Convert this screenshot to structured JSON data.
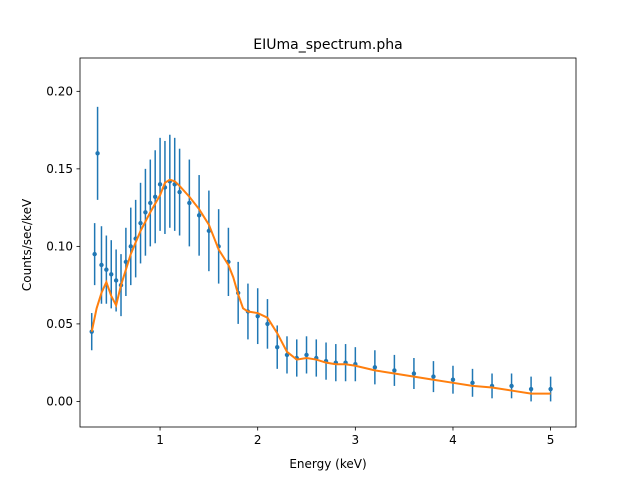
{
  "chart_data": {
    "type": "scatter",
    "title": "EIUma_spectrum.pha",
    "xlabel": "Energy (keV)",
    "ylabel": "Counts/sec/keV",
    "xlim": [
      0.18,
      5.26
    ],
    "ylim": [
      -0.0165,
      0.2215
    ],
    "xticks": [
      1,
      2,
      3,
      4,
      5
    ],
    "xtick_labels": [
      "1",
      "2",
      "3",
      "4",
      "5"
    ],
    "yticks": [
      0.0,
      0.05,
      0.1,
      0.15,
      0.2
    ],
    "ytick_labels": [
      "0.00",
      "0.05",
      "0.10",
      "0.15",
      "0.20"
    ],
    "grid": false,
    "legend": "none",
    "series": [
      {
        "style": "errorbar-points",
        "color": "#1f77b4",
        "x": [
          0.3,
          0.33,
          0.36,
          0.4,
          0.45,
          0.5,
          0.55,
          0.6,
          0.65,
          0.7,
          0.75,
          0.8,
          0.85,
          0.9,
          0.95,
          1.0,
          1.05,
          1.1,
          1.15,
          1.2,
          1.3,
          1.4,
          1.5,
          1.6,
          1.7,
          1.8,
          1.9,
          2.0,
          2.1,
          2.2,
          2.3,
          2.4,
          2.5,
          2.6,
          2.7,
          2.8,
          2.9,
          3.0,
          3.2,
          3.4,
          3.6,
          3.8,
          4.0,
          4.2,
          4.4,
          4.6,
          4.8,
          5.0
        ],
        "y": [
          0.045,
          0.095,
          0.16,
          0.088,
          0.085,
          0.082,
          0.078,
          0.075,
          0.09,
          0.1,
          0.105,
          0.115,
          0.122,
          0.128,
          0.132,
          0.14,
          0.138,
          0.142,
          0.14,
          0.135,
          0.128,
          0.12,
          0.11,
          0.1,
          0.09,
          0.07,
          0.058,
          0.055,
          0.05,
          0.035,
          0.03,
          0.028,
          0.03,
          0.028,
          0.026,
          0.025,
          0.025,
          0.024,
          0.022,
          0.02,
          0.018,
          0.016,
          0.014,
          0.012,
          0.01,
          0.01,
          0.008,
          0.008
        ],
        "yerr": [
          0.012,
          0.02,
          0.03,
          0.025,
          0.022,
          0.022,
          0.02,
          0.02,
          0.022,
          0.025,
          0.025,
          0.026,
          0.028,
          0.028,
          0.03,
          0.03,
          0.03,
          0.03,
          0.03,
          0.028,
          0.028,
          0.026,
          0.026,
          0.024,
          0.022,
          0.02,
          0.018,
          0.018,
          0.016,
          0.014,
          0.012,
          0.012,
          0.012,
          0.012,
          0.012,
          0.012,
          0.012,
          0.011,
          0.011,
          0.01,
          0.01,
          0.01,
          0.009,
          0.009,
          0.008,
          0.008,
          0.008,
          0.008
        ]
      },
      {
        "style": "line",
        "color": "#ff7f0e",
        "x": [
          0.3,
          0.35,
          0.4,
          0.45,
          0.5,
          0.55,
          0.6,
          0.7,
          0.8,
          0.9,
          1.0,
          1.05,
          1.1,
          1.15,
          1.2,
          1.3,
          1.4,
          1.5,
          1.6,
          1.7,
          1.75,
          1.8,
          1.85,
          1.9,
          2.0,
          2.1,
          2.2,
          2.3,
          2.4,
          2.5,
          2.6,
          2.7,
          2.8,
          2.9,
          3.0,
          3.2,
          3.4,
          3.6,
          3.8,
          4.0,
          4.2,
          4.4,
          4.6,
          4.8,
          5.0
        ],
        "y": [
          0.045,
          0.06,
          0.07,
          0.077,
          0.068,
          0.062,
          0.075,
          0.095,
          0.11,
          0.122,
          0.133,
          0.141,
          0.143,
          0.142,
          0.139,
          0.132,
          0.124,
          0.114,
          0.098,
          0.088,
          0.08,
          0.069,
          0.06,
          0.058,
          0.057,
          0.054,
          0.044,
          0.032,
          0.027,
          0.028,
          0.027,
          0.025,
          0.024,
          0.024,
          0.023,
          0.02,
          0.018,
          0.016,
          0.014,
          0.012,
          0.01,
          0.009,
          0.007,
          0.005,
          0.005
        ]
      }
    ]
  }
}
